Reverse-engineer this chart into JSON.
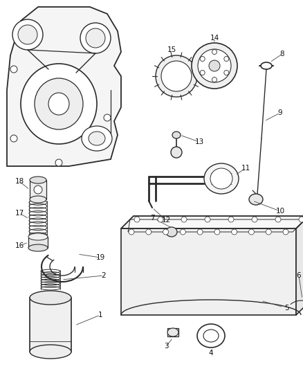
{
  "bg_color": "#ffffff",
  "line_color": "#2a2a2a",
  "label_color": "#111111",
  "fig_width": 4.38,
  "fig_height": 5.33,
  "dpi": 100
}
